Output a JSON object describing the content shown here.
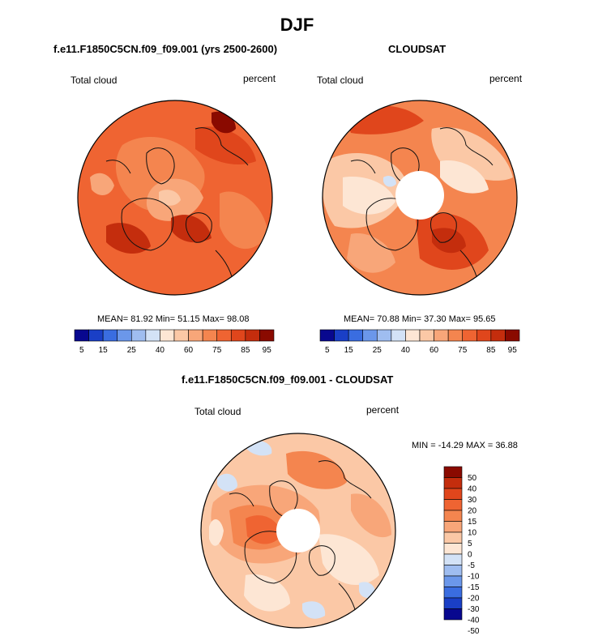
{
  "page": {
    "title": "DJF"
  },
  "chart_data": [
    {
      "type": "heatmap",
      "title": "f.e11.F1850C5CN.f09_f09.001 (yrs 2500-2600)",
      "left_label": "Total cloud",
      "right_label": "percent",
      "stats": {
        "mean_label": "MEAN=",
        "mean": "81.92",
        "min_label": "Min=",
        "min": "51.15",
        "max_label": "Max=",
        "max": "98.08"
      },
      "colorbar": {
        "colors": [
          "#08088f",
          "#1a3fc6",
          "#3a6de0",
          "#6b97ea",
          "#9fbdf0",
          "#d3e2f6",
          "#fde6d4",
          "#fbc8a6",
          "#f8a679",
          "#f4854f",
          "#ef6432",
          "#e0461c",
          "#c42d0d",
          "#8a0a00"
        ],
        "tick_labels": [
          "5",
          "15",
          "25",
          "40",
          "60",
          "75",
          "85",
          "95"
        ]
      },
      "projection": "north-polar-stereographic",
      "mean_value": 81.92
    },
    {
      "type": "heatmap",
      "title": "CLOUDSAT",
      "left_label": "Total cloud",
      "right_label": "percent",
      "stats": {
        "mean_label": "MEAN=",
        "mean": "70.88",
        "min_label": "Min=",
        "min": "37.30",
        "max_label": "Max=",
        "max": "95.65"
      },
      "colorbar": {
        "colors": [
          "#08088f",
          "#1a3fc6",
          "#3a6de0",
          "#6b97ea",
          "#9fbdf0",
          "#d3e2f6",
          "#fde6d4",
          "#fbc8a6",
          "#f8a679",
          "#f4854f",
          "#ef6432",
          "#e0461c",
          "#c42d0d",
          "#8a0a00"
        ],
        "tick_labels": [
          "5",
          "15",
          "25",
          "40",
          "60",
          "75",
          "85",
          "95"
        ]
      },
      "projection": "north-polar-stereographic",
      "mean_value": 70.88
    },
    {
      "type": "heatmap",
      "title": "f.e11.F1850C5CN.f09_f09.001 - CLOUDSAT",
      "left_label": "Total cloud",
      "right_label": "percent",
      "stats_text": "MIN = -14.29 MAX =  36.88",
      "colorbar": {
        "colors": [
          "#8a0a00",
          "#c42d0d",
          "#e0461c",
          "#ef6432",
          "#f4854f",
          "#f8a679",
          "#fbc8a6",
          "#fde6d4",
          "#d3e2f6",
          "#9fbdf0",
          "#6b97ea",
          "#3a6de0",
          "#1a3fc6",
          "#08088f"
        ],
        "tick_labels": [
          "50",
          "40",
          "30",
          "20",
          "15",
          "10",
          "5",
          "0",
          "-5",
          "-10",
          "-15",
          "-20",
          "-30",
          "-40",
          "-50"
        ]
      },
      "projection": "north-polar-stereographic",
      "min": -14.29,
      "max": 36.88
    }
  ]
}
